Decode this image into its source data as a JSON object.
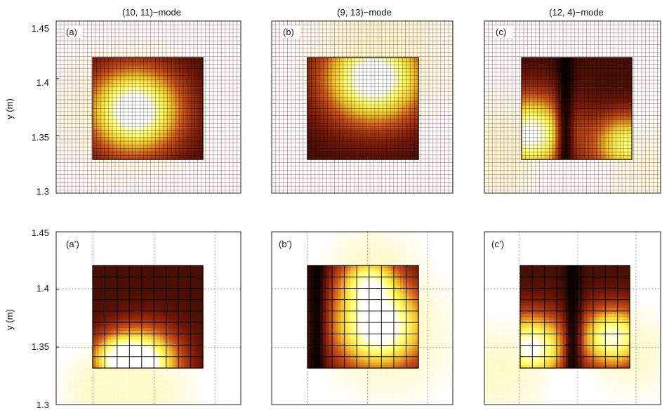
{
  "chart_data": [
    {
      "type": "heatmap",
      "panel_label": "(a)",
      "title": "(10, 11)−mode",
      "ylabel": "y (m)",
      "ylim": [
        1.3,
        1.45
      ],
      "yticks": [
        "1.3",
        "1.35",
        "1.4",
        "1.45"
      ],
      "background_grid": "fine",
      "colormap": [
        "#000000",
        "#7a1a08",
        "#c9521a",
        "#f2c32a",
        "#ffff66",
        "#ffffff"
      ],
      "field_peaks": [
        {
          "u": 0.38,
          "v": 0.52,
          "w": 1.0,
          "s": 0.28
        }
      ],
      "dark_lines": []
    },
    {
      "type": "heatmap",
      "panel_label": "(b)",
      "title": "(9, 13)−mode",
      "ylabel": "",
      "ylim": [
        1.3,
        1.45
      ],
      "yticks": [],
      "background_grid": "fine",
      "colormap": [
        "#000000",
        "#7a1a08",
        "#c9521a",
        "#f2c32a",
        "#ffff66",
        "#ffffff"
      ],
      "field_peaks": [
        {
          "u": 0.6,
          "v": 0.2,
          "w": 1.0,
          "s": 0.3
        }
      ],
      "dark_lines": []
    },
    {
      "type": "heatmap",
      "panel_label": "(c)",
      "title": "(12, 4)−mode",
      "ylabel": "",
      "ylim": [
        1.3,
        1.45
      ],
      "yticks": [],
      "background_grid": "fine",
      "colormap": [
        "#000000",
        "#7a1a08",
        "#c9521a",
        "#f2c32a",
        "#ffff66",
        "#ffffff"
      ],
      "field_peaks": [
        {
          "u": 0.08,
          "v": 0.75,
          "w": 0.9,
          "s": 0.25
        },
        {
          "u": 0.95,
          "v": 0.85,
          "w": 0.7,
          "s": 0.2
        }
      ],
      "dark_lines": [
        {
          "u": 0.4,
          "s": 0.06
        }
      ]
    },
    {
      "type": "heatmap",
      "panel_label": "(a’)",
      "title": "",
      "ylabel": "y (m)",
      "ylim": [
        1.3,
        1.45
      ],
      "yticks": [
        "1.3",
        "1.35",
        "1.4",
        "1.45"
      ],
      "background_grid": "dotted",
      "colormap": [
        "#000000",
        "#7a1a08",
        "#c9521a",
        "#f2c32a",
        "#ffff66",
        "#ffffff"
      ],
      "field_peaks": [
        {
          "u": 0.45,
          "v": 0.95,
          "w": 1.0,
          "s": 0.22
        },
        {
          "u": 0.2,
          "v": 0.9,
          "w": 0.5,
          "s": 0.15
        }
      ],
      "dark_lines": []
    },
    {
      "type": "heatmap",
      "panel_label": "(b’)",
      "title": "",
      "ylabel": "",
      "ylim": [
        1.3,
        1.45
      ],
      "yticks": [],
      "background_grid": "dotted",
      "colormap": [
        "#000000",
        "#7a1a08",
        "#c9521a",
        "#f2c32a",
        "#ffff66",
        "#ffffff"
      ],
      "field_peaks": [
        {
          "u": 0.65,
          "v": 0.6,
          "w": 1.0,
          "s": 0.28
        },
        {
          "u": 0.55,
          "v": 0.15,
          "w": 0.6,
          "s": 0.18
        }
      ],
      "dark_lines": [
        {
          "u": 0.08,
          "s": 0.06
        }
      ]
    },
    {
      "type": "heatmap",
      "panel_label": "(c’)",
      "title": "",
      "ylabel": "",
      "ylim": [
        1.3,
        1.45
      ],
      "yticks": [],
      "background_grid": "dotted",
      "colormap": [
        "#000000",
        "#7a1a08",
        "#c9521a",
        "#f2c32a",
        "#ffff66",
        "#ffffff"
      ],
      "field_peaks": [
        {
          "u": 0.1,
          "v": 0.8,
          "w": 0.9,
          "s": 0.22
        },
        {
          "u": 0.85,
          "v": 0.7,
          "w": 0.85,
          "s": 0.2
        }
      ],
      "dark_lines": [
        {
          "u": 0.48,
          "s": 0.06
        }
      ]
    }
  ]
}
